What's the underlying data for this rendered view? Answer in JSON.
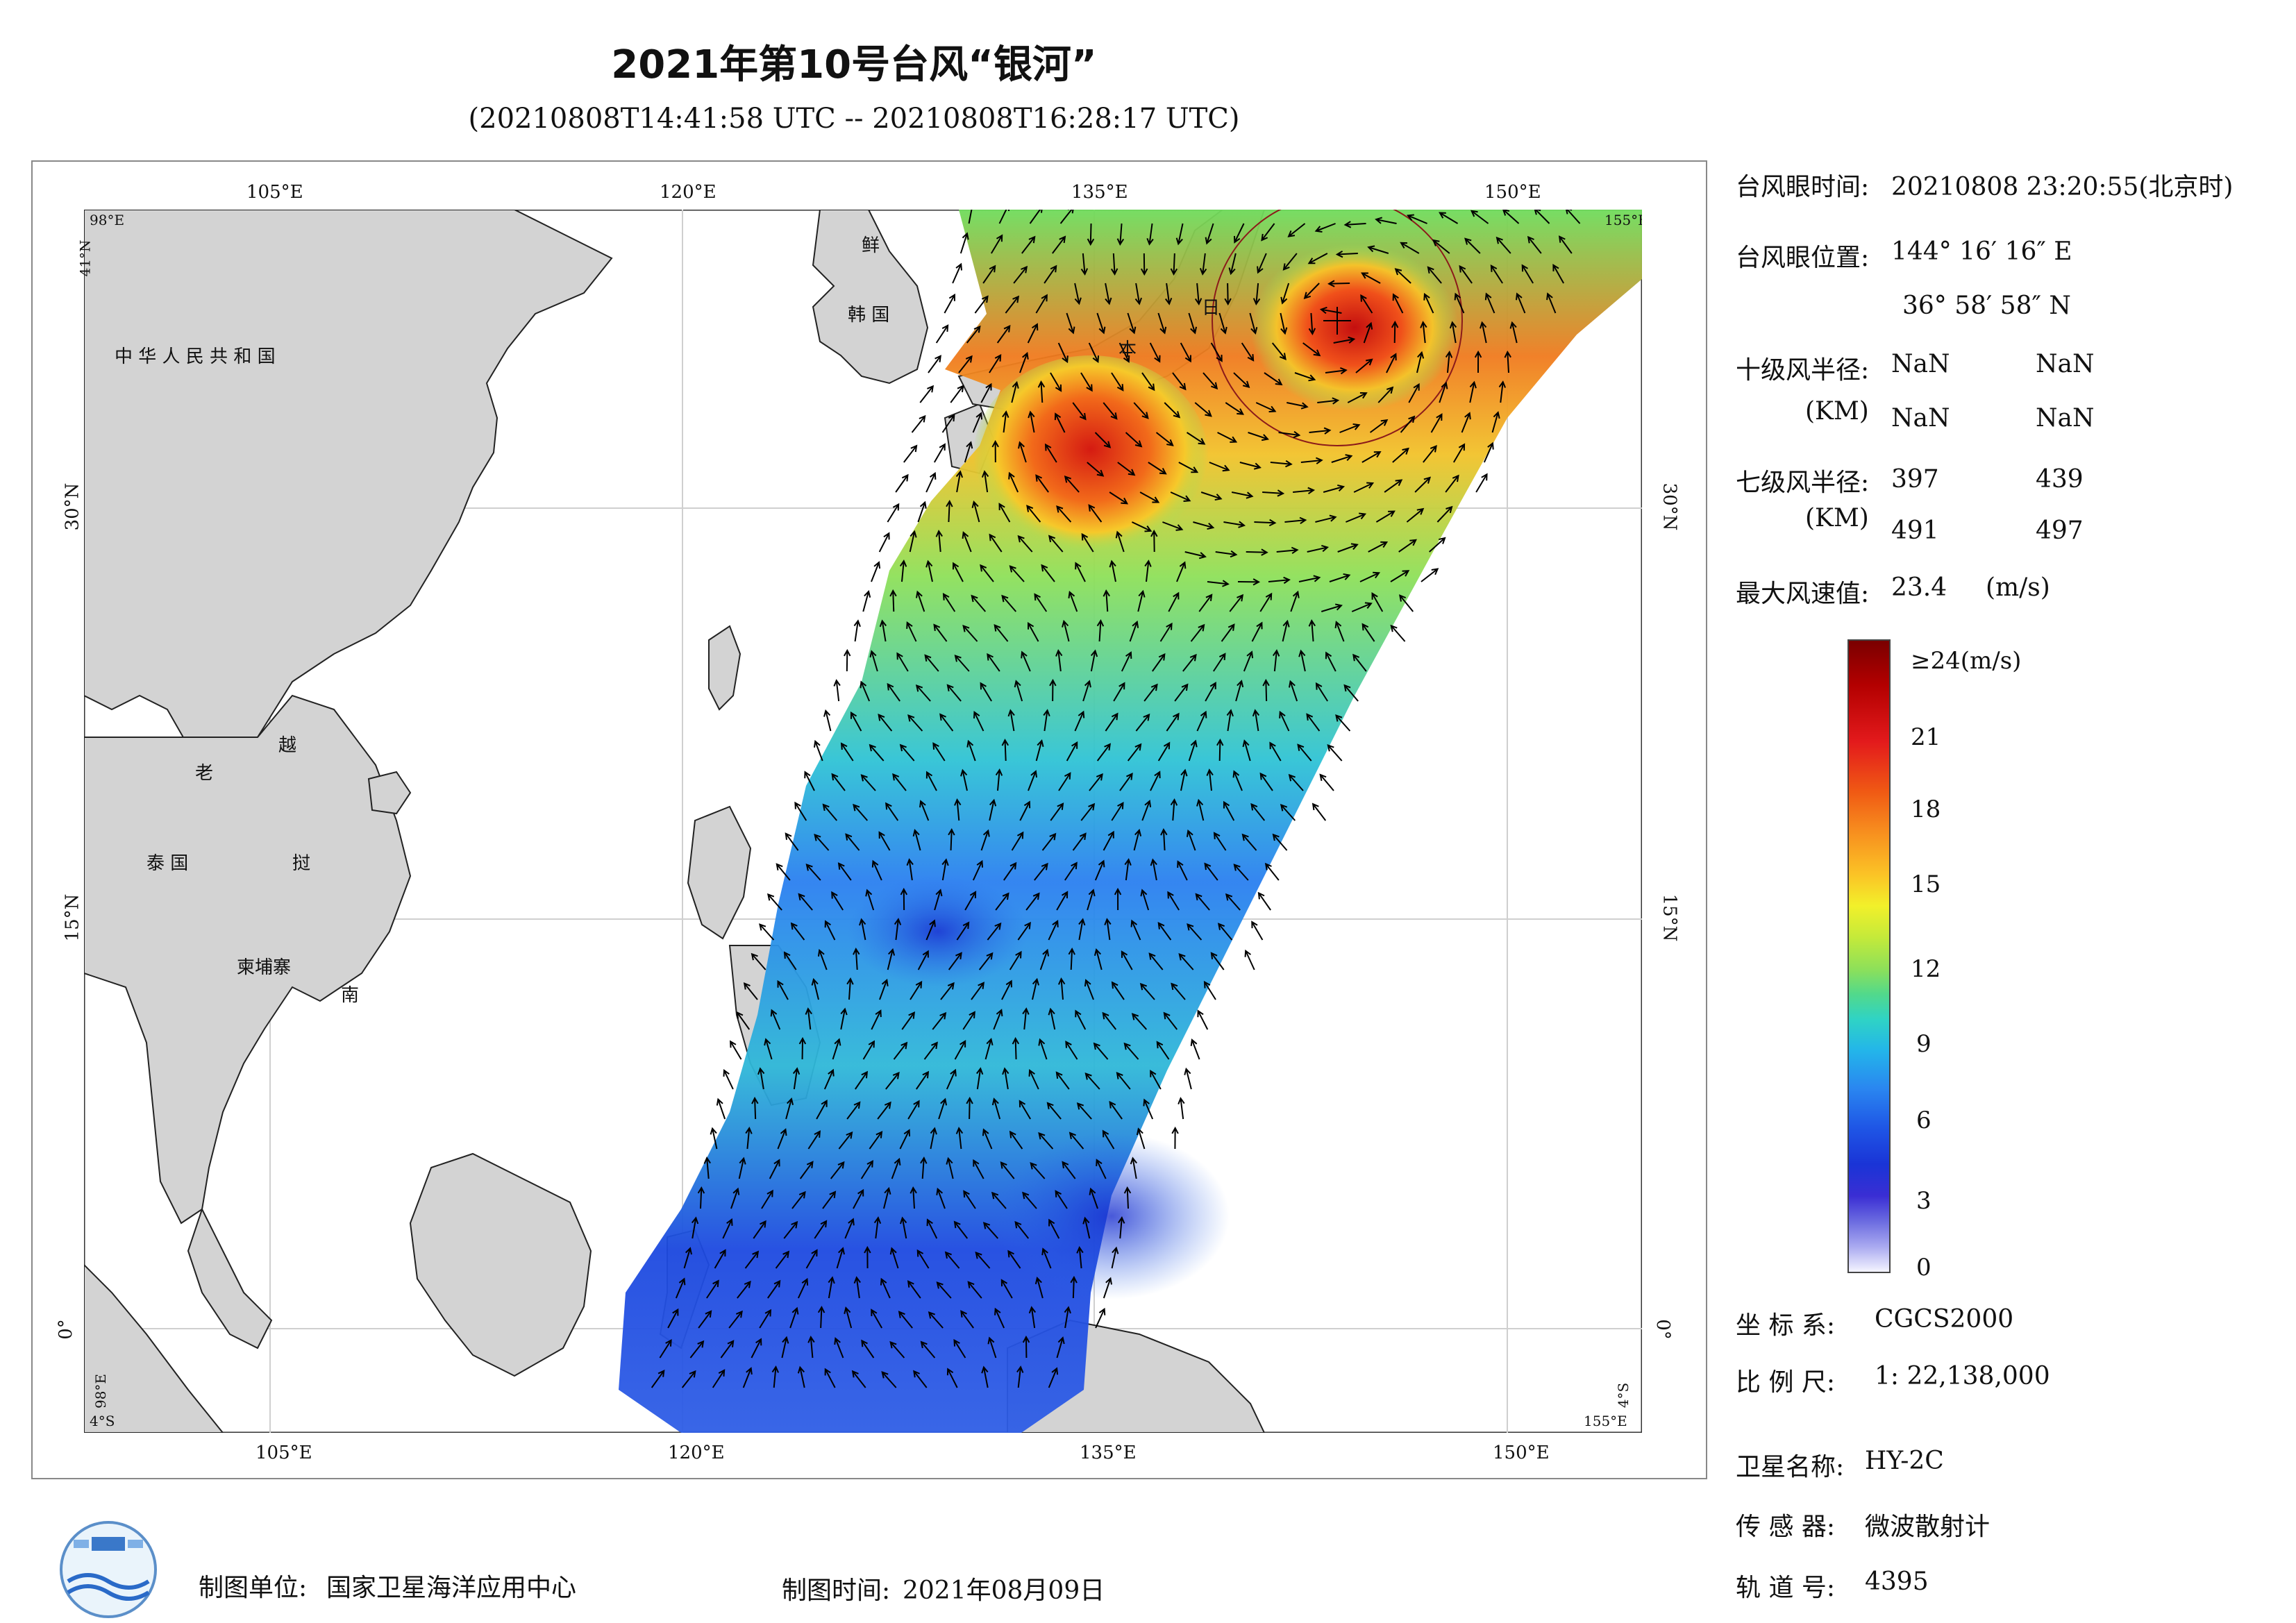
{
  "header": {
    "title": "2021年第10号台风“银河”",
    "subtitle": "(20210808T14:41:58 UTC -- 20210808T16:28:17 UTC)"
  },
  "map": {
    "lon_ticks_top": [
      "105°E",
      "120°E",
      "135°E",
      "150°E"
    ],
    "lon_ticks_bottom": [
      "105°E",
      "120°E",
      "135°E",
      "150°E"
    ],
    "lat_ticks_left": [
      "30°N",
      "15°N",
      "0°"
    ],
    "lat_ticks_right": [
      "30°N",
      "15°N",
      "0°"
    ],
    "corner_labels": {
      "top_left_lon": "98°E",
      "top_left_lat": "41°N",
      "top_right_lon": "155°E",
      "bottom_left_lon": "98°E",
      "bottom_left_lat": "4°S",
      "bottom_right_lat": "4°S",
      "bottom_right_lon": "155°E"
    },
    "place_labels": {
      "china": "中 华 人 民 共 和 国",
      "korea_north": "鲜",
      "korea_south": "韩 国",
      "japan_ri": "日",
      "japan_ben": "本",
      "laos": "老",
      "vietnam_yue": "越",
      "thailand": "泰 国",
      "vietnam_nan": "南",
      "cambodia": "柬埔寨"
    },
    "colors": {
      "land": "#d3d3d3",
      "sea": "#ffffff",
      "coast": "#222222",
      "grid": "#cfcfcf"
    }
  },
  "info": {
    "eye_time_label": "台风眼时间:",
    "eye_time_value": "20210808 23:20:55(北京时)",
    "eye_pos_label": "台风眼位置:",
    "eye_pos_lon": "144° 16′ 16″ E",
    "eye_pos_lat": "36° 58′ 58″ N",
    "r10_label": "十级风半径:",
    "r10_unit": "(KM)",
    "r10_values": [
      "NaN",
      "NaN",
      "NaN",
      "NaN"
    ],
    "r7_label": "七级风半径:",
    "r7_unit": "(KM)",
    "r7_values": [
      "397",
      "439",
      "491",
      "497"
    ],
    "max_wind_label": "最大风速值:",
    "max_wind_value": "23.4",
    "max_wind_unit": "(m/s)"
  },
  "colorbar": {
    "top_label": "≥24(m/s)",
    "ticks": [
      "21",
      "18",
      "15",
      "12",
      "9",
      "6",
      "3",
      "0"
    ]
  },
  "meta": {
    "crs_label": "坐 标 系:",
    "crs_value": "CGCS2000",
    "scale_label": "比 例 尺:",
    "scale_value": "1: 22,138,000",
    "satellite_label": "卫星名称:",
    "satellite_value": "HY-2C",
    "sensor_label": "传 感 器:",
    "sensor_value": "微波散射计",
    "orbit_label": "轨 道 号:",
    "orbit_value": "4395"
  },
  "footer": {
    "maker_label": "制图单位:",
    "maker_value": "国家卫星海洋应用中心",
    "date_label": "制图时间:",
    "date_value": "2021年08月09日"
  }
}
